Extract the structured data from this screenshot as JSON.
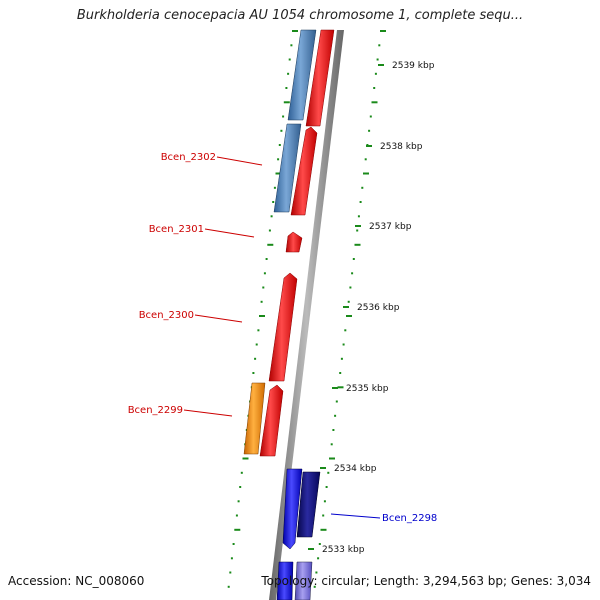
{
  "title": "Burkholderia cenocepacia AU 1054 chromosome 1, complete sequ...",
  "footer": {
    "accession": "Accession: NC_008060",
    "summary": "Topology: circular; Length: 3,294,563 bp; Genes: 3,034"
  },
  "ticks": [
    {
      "label": "2539 kbp",
      "kbp": 2539
    },
    {
      "label": "2538 kbp",
      "kbp": 2538
    },
    {
      "label": "2537 kbp",
      "kbp": 2537
    },
    {
      "label": "2536 kbp",
      "kbp": 2536
    },
    {
      "label": "2535 kbp",
      "kbp": 2535
    },
    {
      "label": "2534 kbp",
      "kbp": 2534
    },
    {
      "label": "2533 kbp",
      "kbp": 2533
    }
  ],
  "gene_labels": [
    {
      "label": "Bcen_2302",
      "color": "#cc0000"
    },
    {
      "label": "Bcen_2301",
      "color": "#cc0000"
    },
    {
      "label": "Bcen_2300",
      "color": "#cc0000"
    },
    {
      "label": "Bcen_2299",
      "color": "#cc0000"
    },
    {
      "label": "Bcen_2298",
      "color": "#0000cc"
    }
  ],
  "colors": {
    "steel_blue": "#4a7fb5",
    "red": "#e8141c",
    "orange": "#f08c10",
    "blue": "#1a1ae0",
    "navy": "#0c0c7a",
    "lavender": "#7b72d8",
    "backbone": "#888888",
    "gc_dots": "#1a8a1a"
  }
}
